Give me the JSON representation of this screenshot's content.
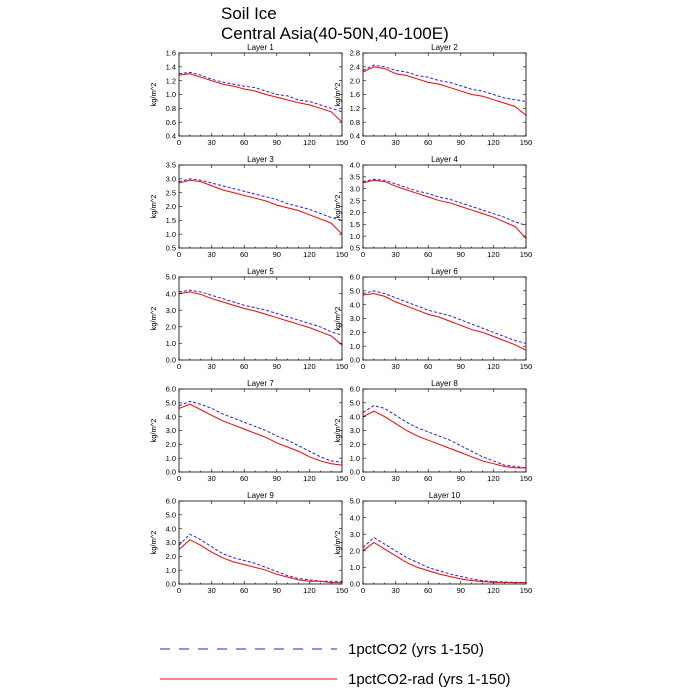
{
  "header": {
    "title": "Soil Ice",
    "subtitle": "Central Asia(40-50N,40-100E)"
  },
  "legend": {
    "items": [
      {
        "label": "1pctCO2 (yrs 1-150)",
        "color": "#2222dd",
        "style": "dashed"
      },
      {
        "label": "1pctCO2-rad (yrs 1-150)",
        "color": "#ff0000",
        "style": "solid"
      }
    ]
  },
  "chart_data": [
    {
      "type": "line",
      "title": "Layer 1",
      "ylabel": "kg/m^2",
      "xlim": [
        0,
        150
      ],
      "ylim": [
        0.4,
        1.6
      ],
      "xticks": [
        0,
        30,
        60,
        90,
        120,
        150
      ],
      "yticks": [
        0.4,
        0.6,
        0.8,
        1.0,
        1.2,
        1.4,
        1.6
      ],
      "ytick_labels": [
        "0.4",
        "0.6",
        "0.8",
        "1.0",
        "1.2",
        "1.4",
        "1.6"
      ],
      "x": [
        0,
        10,
        20,
        30,
        40,
        50,
        60,
        70,
        80,
        90,
        100,
        110,
        120,
        130,
        140,
        150
      ],
      "series": [
        {
          "values": [
            1.3,
            1.32,
            1.28,
            1.22,
            1.18,
            1.15,
            1.12,
            1.1,
            1.05,
            1.0,
            0.98,
            0.92,
            0.9,
            0.85,
            0.8,
            0.75
          ]
        },
        {
          "values": [
            1.28,
            1.3,
            1.25,
            1.2,
            1.15,
            1.12,
            1.08,
            1.05,
            1.0,
            0.96,
            0.92,
            0.88,
            0.85,
            0.8,
            0.75,
            0.6
          ]
        }
      ]
    },
    {
      "type": "line",
      "title": "Layer 2",
      "ylabel": "kg/m^2",
      "xlim": [
        0,
        150
      ],
      "ylim": [
        0.4,
        2.8
      ],
      "xticks": [
        0,
        30,
        60,
        90,
        120,
        150
      ],
      "yticks": [
        0.4,
        0.8,
        1.2,
        1.6,
        2.0,
        2.4,
        2.8
      ],
      "ytick_labels": [
        "0.4",
        "0.8",
        "1.2",
        "1.6",
        "2.0",
        "2.4",
        "2.8"
      ],
      "x": [
        0,
        10,
        20,
        30,
        40,
        50,
        60,
        70,
        80,
        90,
        100,
        110,
        120,
        130,
        140,
        150
      ],
      "series": [
        {
          "values": [
            2.3,
            2.45,
            2.4,
            2.3,
            2.25,
            2.15,
            2.1,
            2.0,
            1.95,
            1.85,
            1.75,
            1.7,
            1.6,
            1.5,
            1.45,
            1.4
          ]
        },
        {
          "values": [
            2.25,
            2.4,
            2.35,
            2.2,
            2.15,
            2.05,
            1.95,
            1.9,
            1.8,
            1.7,
            1.6,
            1.55,
            1.45,
            1.35,
            1.25,
            1.0
          ]
        }
      ]
    },
    {
      "type": "line",
      "title": "Layer 3",
      "ylabel": "kg/m^2",
      "xlim": [
        0,
        150
      ],
      "ylim": [
        0.5,
        3.5
      ],
      "xticks": [
        0,
        30,
        60,
        90,
        120,
        150
      ],
      "yticks": [
        0.5,
        1.0,
        1.5,
        2.0,
        2.5,
        3.0,
        3.5
      ],
      "ytick_labels": [
        "0.5",
        "1.0",
        "1.5",
        "2.0",
        "2.5",
        "3.0",
        "3.5"
      ],
      "x": [
        0,
        10,
        20,
        30,
        40,
        50,
        60,
        70,
        80,
        90,
        100,
        110,
        120,
        130,
        140,
        150
      ],
      "series": [
        {
          "values": [
            2.9,
            3.0,
            2.95,
            2.85,
            2.75,
            2.65,
            2.55,
            2.45,
            2.35,
            2.25,
            2.1,
            2.0,
            1.9,
            1.75,
            1.6,
            1.5
          ]
        },
        {
          "values": [
            2.85,
            2.95,
            2.9,
            2.75,
            2.6,
            2.5,
            2.4,
            2.3,
            2.2,
            2.05,
            1.95,
            1.85,
            1.7,
            1.55,
            1.4,
            1.0
          ]
        }
      ]
    },
    {
      "type": "line",
      "title": "Layer 4",
      "ylabel": "kg/m^2",
      "xlim": [
        0,
        150
      ],
      "ylim": [
        0.5,
        4.0
      ],
      "xticks": [
        0,
        30,
        60,
        90,
        120,
        150
      ],
      "yticks": [
        0.5,
        1.0,
        1.5,
        2.0,
        2.5,
        3.0,
        3.5,
        4.0
      ],
      "ytick_labels": [
        "0.5",
        "1.0",
        "1.5",
        "2.0",
        "2.5",
        "3.0",
        "3.5",
        "4.0"
      ],
      "x": [
        0,
        10,
        20,
        30,
        40,
        50,
        60,
        70,
        80,
        90,
        100,
        110,
        120,
        130,
        140,
        150
      ],
      "series": [
        {
          "values": [
            3.3,
            3.4,
            3.35,
            3.2,
            3.05,
            2.9,
            2.8,
            2.65,
            2.55,
            2.4,
            2.25,
            2.1,
            1.95,
            1.8,
            1.6,
            1.45
          ]
        },
        {
          "values": [
            3.25,
            3.35,
            3.3,
            3.1,
            2.95,
            2.8,
            2.65,
            2.5,
            2.4,
            2.25,
            2.1,
            1.95,
            1.8,
            1.6,
            1.4,
            0.9
          ]
        }
      ]
    },
    {
      "type": "line",
      "title": "Layer 5",
      "ylabel": "kg/m^2",
      "xlim": [
        0,
        150
      ],
      "ylim": [
        0.0,
        5.0
      ],
      "xticks": [
        0,
        30,
        60,
        90,
        120,
        150
      ],
      "yticks": [
        0.0,
        1.0,
        2.0,
        3.0,
        4.0,
        5.0
      ],
      "ytick_labels": [
        "0.0",
        "1.0",
        "2.0",
        "3.0",
        "4.0",
        "5.0"
      ],
      "x": [
        0,
        10,
        20,
        30,
        40,
        50,
        60,
        70,
        80,
        90,
        100,
        110,
        120,
        130,
        140,
        150
      ],
      "series": [
        {
          "values": [
            4.1,
            4.2,
            4.1,
            3.9,
            3.7,
            3.5,
            3.3,
            3.15,
            3.0,
            2.8,
            2.6,
            2.4,
            2.2,
            2.0,
            1.7,
            1.5
          ]
        },
        {
          "values": [
            4.0,
            4.1,
            3.95,
            3.7,
            3.5,
            3.3,
            3.1,
            2.95,
            2.75,
            2.55,
            2.35,
            2.15,
            1.95,
            1.7,
            1.45,
            0.9
          ]
        }
      ]
    },
    {
      "type": "line",
      "title": "Layer 6",
      "ylabel": "kg/m^2",
      "xlim": [
        0,
        150
      ],
      "ylim": [
        0.0,
        6.0
      ],
      "xticks": [
        0,
        30,
        60,
        90,
        120,
        150
      ],
      "yticks": [
        0.0,
        1.0,
        2.0,
        3.0,
        4.0,
        5.0,
        6.0
      ],
      "ytick_labels": [
        "0.0",
        "1.0",
        "2.0",
        "3.0",
        "4.0",
        "5.0",
        "6.0"
      ],
      "x": [
        0,
        10,
        20,
        30,
        40,
        50,
        60,
        70,
        80,
        90,
        100,
        110,
        120,
        130,
        140,
        150
      ],
      "series": [
        {
          "values": [
            4.8,
            5.0,
            4.8,
            4.5,
            4.2,
            3.9,
            3.6,
            3.4,
            3.2,
            2.9,
            2.6,
            2.3,
            2.0,
            1.7,
            1.4,
            1.2
          ]
        },
        {
          "values": [
            4.7,
            4.8,
            4.6,
            4.2,
            3.9,
            3.6,
            3.3,
            3.1,
            2.8,
            2.5,
            2.2,
            2.0,
            1.7,
            1.4,
            1.1,
            0.7
          ]
        }
      ]
    },
    {
      "type": "line",
      "title": "Layer 7",
      "ylabel": "kg/m^2",
      "xlim": [
        0,
        150
      ],
      "ylim": [
        0.0,
        6.0
      ],
      "xticks": [
        0,
        30,
        60,
        90,
        120,
        150
      ],
      "yticks": [
        0.0,
        1.0,
        2.0,
        3.0,
        4.0,
        5.0,
        6.0
      ],
      "ytick_labels": [
        "0.0",
        "1.0",
        "2.0",
        "3.0",
        "4.0",
        "5.0",
        "6.0"
      ],
      "x": [
        0,
        10,
        20,
        30,
        40,
        50,
        60,
        70,
        80,
        90,
        100,
        110,
        120,
        130,
        140,
        150
      ],
      "series": [
        {
          "values": [
            4.8,
            5.1,
            4.9,
            4.6,
            4.2,
            3.9,
            3.6,
            3.3,
            3.0,
            2.6,
            2.3,
            1.9,
            1.5,
            1.1,
            0.8,
            0.7
          ]
        },
        {
          "values": [
            4.6,
            4.9,
            4.5,
            4.1,
            3.7,
            3.4,
            3.1,
            2.8,
            2.5,
            2.1,
            1.8,
            1.5,
            1.1,
            0.8,
            0.6,
            0.5
          ]
        }
      ]
    },
    {
      "type": "line",
      "title": "Layer 8",
      "ylabel": "kg/m^2",
      "xlim": [
        0,
        150
      ],
      "ylim": [
        0.0,
        6.0
      ],
      "xticks": [
        0,
        30,
        60,
        90,
        120,
        150
      ],
      "yticks": [
        0.0,
        1.0,
        2.0,
        3.0,
        4.0,
        5.0,
        6.0
      ],
      "ytick_labels": [
        "0.0",
        "1.0",
        "2.0",
        "3.0",
        "4.0",
        "5.0",
        "6.0"
      ],
      "x": [
        0,
        10,
        20,
        30,
        40,
        50,
        60,
        70,
        80,
        90,
        100,
        110,
        120,
        130,
        140,
        150
      ],
      "series": [
        {
          "values": [
            4.3,
            4.8,
            4.6,
            4.1,
            3.6,
            3.2,
            2.9,
            2.6,
            2.3,
            1.9,
            1.5,
            1.1,
            0.8,
            0.5,
            0.4,
            0.3
          ]
        },
        {
          "values": [
            4.0,
            4.4,
            4.0,
            3.5,
            3.0,
            2.6,
            2.3,
            2.0,
            1.7,
            1.4,
            1.1,
            0.8,
            0.6,
            0.4,
            0.3,
            0.3
          ]
        }
      ]
    },
    {
      "type": "line",
      "title": "Layer 9",
      "ylabel": "kg/m^2",
      "xlim": [
        0,
        150
      ],
      "ylim": [
        0.0,
        6.0
      ],
      "xticks": [
        0,
        30,
        60,
        90,
        120,
        150
      ],
      "yticks": [
        0.0,
        1.0,
        2.0,
        3.0,
        4.0,
        5.0,
        6.0
      ],
      "ytick_labels": [
        "0.0",
        "1.0",
        "2.0",
        "3.0",
        "4.0",
        "5.0",
        "6.0"
      ],
      "x": [
        0,
        10,
        20,
        30,
        40,
        50,
        60,
        70,
        80,
        90,
        100,
        110,
        120,
        130,
        140,
        150
      ],
      "series": [
        {
          "values": [
            2.8,
            3.6,
            3.2,
            2.7,
            2.2,
            1.9,
            1.7,
            1.5,
            1.2,
            0.9,
            0.6,
            0.4,
            0.3,
            0.2,
            0.2,
            0.2
          ]
        },
        {
          "values": [
            2.5,
            3.2,
            2.8,
            2.3,
            1.9,
            1.6,
            1.4,
            1.2,
            1.0,
            0.7,
            0.5,
            0.3,
            0.2,
            0.2,
            0.1,
            0.1
          ]
        }
      ]
    },
    {
      "type": "line",
      "title": "Layer 10",
      "ylabel": "kg/m^2",
      "xlim": [
        0,
        150
      ],
      "ylim": [
        0.0,
        5.0
      ],
      "xticks": [
        0,
        30,
        60,
        90,
        120,
        150
      ],
      "yticks": [
        0.0,
        1.0,
        2.0,
        3.0,
        4.0,
        5.0
      ],
      "ytick_labels": [
        "0.0",
        "1.0",
        "2.0",
        "3.0",
        "4.0",
        "5.0"
      ],
      "x": [
        0,
        10,
        20,
        30,
        40,
        50,
        60,
        70,
        80,
        90,
        100,
        110,
        120,
        130,
        140,
        150
      ],
      "series": [
        {
          "values": [
            2.2,
            2.8,
            2.4,
            2.0,
            1.6,
            1.3,
            1.0,
            0.8,
            0.6,
            0.45,
            0.3,
            0.2,
            0.15,
            0.12,
            0.1,
            0.1
          ]
        },
        {
          "values": [
            2.0,
            2.5,
            2.1,
            1.7,
            1.3,
            1.0,
            0.8,
            0.6,
            0.45,
            0.3,
            0.2,
            0.15,
            0.1,
            0.1,
            0.08,
            0.08
          ]
        }
      ]
    }
  ]
}
